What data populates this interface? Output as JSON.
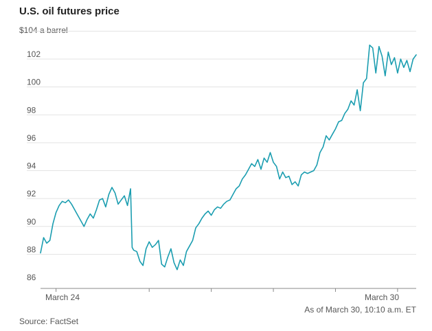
{
  "chart_data": {
    "type": "line",
    "title": "U.S. oil futures price",
    "ylabel_top": "$104 a barrel",
    "ylim": [
      86,
      104
    ],
    "y_ticks": [
      86,
      88,
      90,
      92,
      94,
      96,
      98,
      100,
      102,
      104
    ],
    "y_tick_labels": [
      "86",
      "88",
      "90",
      "92",
      "94",
      "96",
      "98",
      "100",
      "102"
    ],
    "x_tick_labels": [
      "March 24",
      "March 30"
    ],
    "x_tick_positions": [
      0.0,
      3.0,
      5.0,
      7.0,
      9.0,
      11.0
    ],
    "xlim": [
      -0.5,
      11.6
    ],
    "source": "Source: FactSet",
    "timestamp_note": "As of March 30, 10:10 a.m. ET",
    "series": [
      {
        "name": "U.S. oil futures",
        "color": "#1a9db0",
        "x": [
          -0.5,
          -0.4,
          -0.3,
          -0.2,
          -0.1,
          0.0,
          0.1,
          0.2,
          0.3,
          0.4,
          0.5,
          0.6,
          0.7,
          0.8,
          0.9,
          1.0,
          1.1,
          1.2,
          1.3,
          1.4,
          1.5,
          1.6,
          1.7,
          1.8,
          1.9,
          2.0,
          2.1,
          2.2,
          2.3,
          2.4,
          2.45,
          2.5,
          2.6,
          2.7,
          2.8,
          2.9,
          3.0,
          3.1,
          3.2,
          3.3,
          3.4,
          3.5,
          3.6,
          3.7,
          3.8,
          3.9,
          4.0,
          4.1,
          4.2,
          4.3,
          4.4,
          4.5,
          4.6,
          4.7,
          4.8,
          4.9,
          5.0,
          5.1,
          5.2,
          5.3,
          5.4,
          5.5,
          5.6,
          5.7,
          5.8,
          5.9,
          6.0,
          6.1,
          6.2,
          6.3,
          6.4,
          6.5,
          6.6,
          6.7,
          6.8,
          6.9,
          7.0,
          7.1,
          7.2,
          7.3,
          7.4,
          7.5,
          7.6,
          7.7,
          7.8,
          7.9,
          8.0,
          8.1,
          8.2,
          8.3,
          8.4,
          8.5,
          8.6,
          8.7,
          8.8,
          8.9,
          9.0,
          9.1,
          9.2,
          9.3,
          9.4,
          9.5,
          9.6,
          9.7,
          9.8,
          9.9,
          10.0,
          10.1,
          10.2,
          10.3,
          10.4,
          10.5,
          10.6,
          10.7,
          10.8,
          10.9,
          11.0,
          11.1,
          11.2,
          11.3,
          11.4,
          11.5,
          11.6
        ],
        "values": [
          88.1,
          89.2,
          88.8,
          89.0,
          90.2,
          91.0,
          91.5,
          91.8,
          91.7,
          91.9,
          91.6,
          91.2,
          90.8,
          90.4,
          90.0,
          90.5,
          90.9,
          90.6,
          91.2,
          91.9,
          92.0,
          91.4,
          92.3,
          92.8,
          92.4,
          91.6,
          91.9,
          92.2,
          91.5,
          92.7,
          88.5,
          88.3,
          88.2,
          87.5,
          87.2,
          88.4,
          88.9,
          88.5,
          88.7,
          89.0,
          87.3,
          87.1,
          87.8,
          88.4,
          87.4,
          86.9,
          87.6,
          87.2,
          88.2,
          88.6,
          89.0,
          89.9,
          90.2,
          90.6,
          90.9,
          91.1,
          90.8,
          91.2,
          91.4,
          91.3,
          91.6,
          91.8,
          91.9,
          92.3,
          92.7,
          92.9,
          93.4,
          93.7,
          94.1,
          94.5,
          94.3,
          94.8,
          94.1,
          94.9,
          94.6,
          95.3,
          94.6,
          94.3,
          93.4,
          93.9,
          93.5,
          93.6,
          93.0,
          93.2,
          92.9,
          93.7,
          93.9,
          93.8,
          93.9,
          94.0,
          94.4,
          95.3,
          95.7,
          96.5,
          96.2,
          96.6,
          97.0,
          97.5,
          97.6,
          98.1,
          98.4,
          99.0,
          98.7,
          99.8,
          98.3,
          100.3,
          100.6,
          103.0,
          102.8,
          101.0,
          102.9,
          102.2,
          100.8,
          102.5,
          101.6,
          102.1,
          101.0,
          102.0,
          101.4,
          101.9,
          101.1,
          102.0,
          102.3
        ]
      }
    ]
  }
}
